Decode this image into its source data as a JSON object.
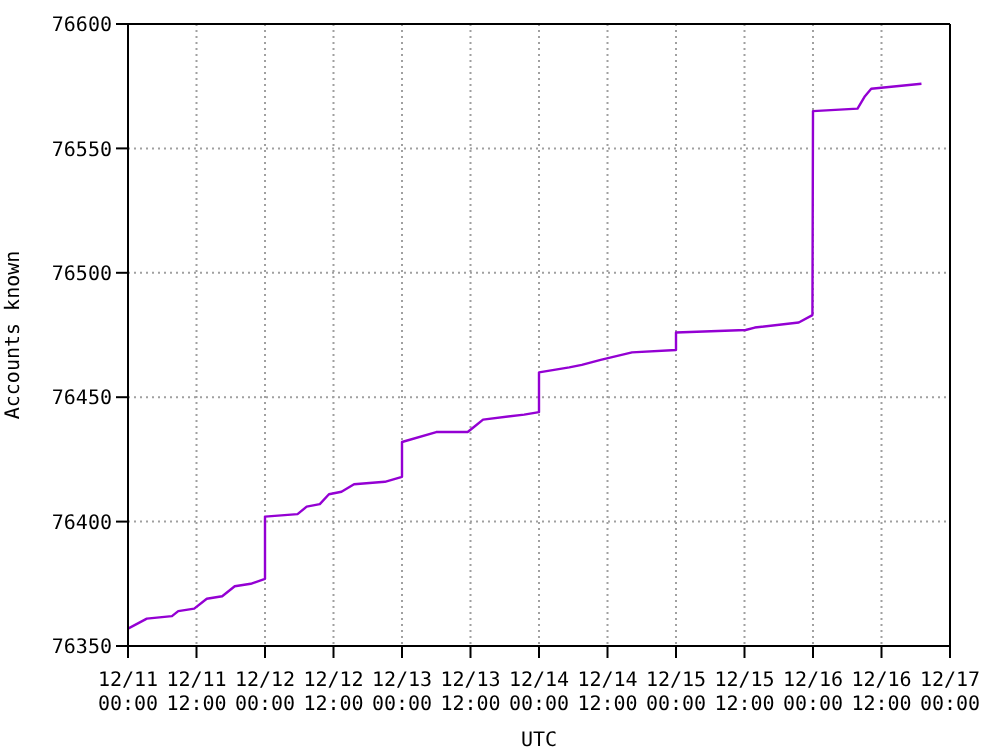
{
  "chart_data": {
    "type": "line",
    "xlabel": "UTC",
    "ylabel": "Accounts known",
    "x": [
      "--12-11T00:00",
      "--12-11T03:18",
      "--12-11T07:42",
      "--12-11T08:48",
      "--12-11T11:36",
      "--12-11T13:48",
      "--12-11T16:30",
      "--12-11T18:42",
      "--12-11T21:30",
      "--12-12T00:00",
      "--12-12T00:00",
      "--12-12T05:42",
      "--12-12T07:18",
      "--12-12T09:36",
      "--12-12T11:12",
      "--12-12T13:24",
      "--12-12T15:36",
      "--12-12T21:00",
      "--12-13T00:00",
      "--12-13T00:00",
      "--12-13T06:00",
      "--12-13T11:30",
      "--12-13T12:36",
      "--12-13T14:12",
      "--12-13T21:24",
      "--12-14T00:00",
      "--12-14T00:00",
      "--12-14T05:18",
      "--12-14T07:30",
      "--12-14T10:48",
      "--12-14T16:18",
      "--12-15T00:00",
      "--12-15T00:00",
      "--12-15T12:12",
      "--12-15T13:48",
      "--12-15T21:30",
      "--12-15T23:54",
      "--12-16T00:00",
      "--12-16T07:48",
      "--12-16T09:06",
      "--12-16T10:12",
      "--12-16T19:00"
    ],
    "series": [
      {
        "color": "#9400d3",
        "values": [
          76357,
          76361,
          76362,
          76364,
          76365,
          76369,
          76370,
          76374,
          76375,
          76377,
          76402,
          76403,
          76406,
          76407,
          76411,
          76412,
          76415,
          76416,
          76418,
          76432,
          76436,
          76436,
          76438,
          76441,
          76443,
          76444,
          76460,
          76462,
          76463,
          76465,
          76468,
          76469,
          76476,
          76477,
          76478,
          76480,
          76483,
          76565,
          76566,
          76571,
          76574,
          76576
        ]
      }
    ],
    "xlim": [
      "--12-11T00:00",
      "--12-17T00:00"
    ],
    "xticks": [
      {
        "value": "--12-11T00:00",
        "label": "12/11 00:00"
      },
      {
        "value": "--12-11T12:00",
        "label": "12/11 12:00"
      },
      {
        "value": "--12-12T00:00",
        "label": "12/12 00:00"
      },
      {
        "value": "--12-12T12:00",
        "label": "12/12 12:00"
      },
      {
        "value": "--12-13T00:00",
        "label": "12/13 00:00"
      },
      {
        "value": "--12-13T12:00",
        "label": "12/13 12:00"
      },
      {
        "value": "--12-14T00:00",
        "label": "12/14 00:00"
      },
      {
        "value": "--12-14T12:00",
        "label": "12/14 12:00"
      },
      {
        "value": "--12-15T00:00",
        "label": "12/15 00:00"
      },
      {
        "value": "--12-15T12:00",
        "label": "12/15 12:00"
      },
      {
        "value": "--12-16T00:00",
        "label": "12/16 00:00"
      },
      {
        "value": "--12-16T12:00",
        "label": "12/16 12:00"
      },
      {
        "value": "--12-17T00:00",
        "label": "12/17 00:00"
      }
    ],
    "ylim": [
      76350,
      76600
    ],
    "yticks": [
      76350,
      76400,
      76450,
      76500,
      76550,
      76600
    ],
    "grid": true,
    "legend": false,
    "marker": "none",
    "line_style": "solid"
  }
}
